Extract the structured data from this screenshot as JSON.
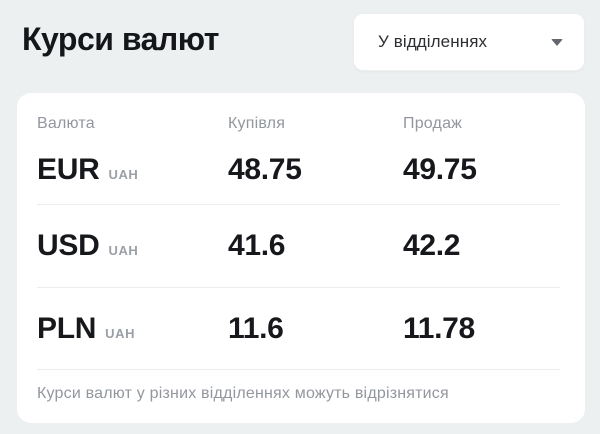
{
  "page": {
    "title": "Курси валют"
  },
  "dropdown": {
    "selected": "У відділеннях",
    "caret_icon": "caret-down",
    "colors": {
      "background": "#ffffff",
      "text": "#2c2e33",
      "caret": "#64676d"
    }
  },
  "table": {
    "headers": [
      "Валюта",
      "Купівля",
      "Продаж"
    ],
    "rows": [
      {
        "code": "EUR",
        "unit": "UAH",
        "buy": "48.75",
        "sell": "49.75"
      },
      {
        "code": "USD",
        "unit": "UAH",
        "buy": "41.6",
        "sell": "42.2"
      },
      {
        "code": "PLN",
        "unit": "UAH",
        "buy": "11.6",
        "sell": "11.78"
      }
    ],
    "footnote": "Курси валют у різних відділеннях можуть відрізнятися"
  },
  "colors": {
    "background": "#edf0f1",
    "card": "#ffffff",
    "text_primary": "#15161a",
    "text_muted": "#92979e",
    "divider": "#ececec"
  }
}
